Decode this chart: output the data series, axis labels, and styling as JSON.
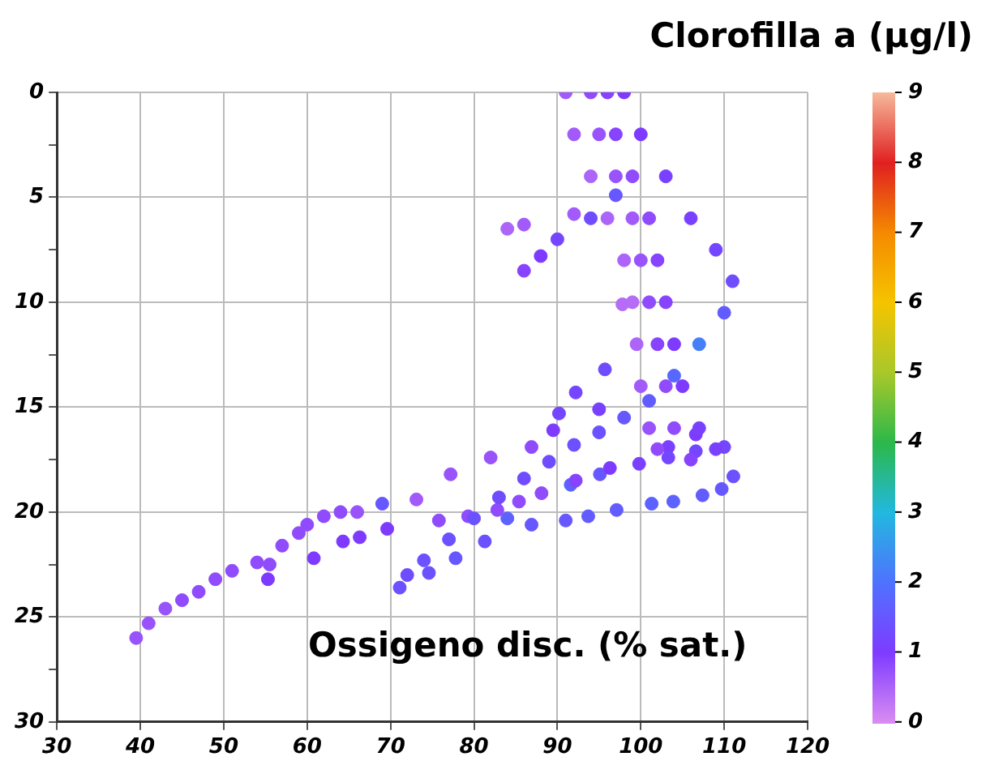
{
  "chart_data": {
    "type": "scatter",
    "xlabel": "Ossigeno disc. (% sat.)",
    "clabel": "Clorofilla a (µg/l)",
    "xlim": [
      30,
      120
    ],
    "xticks": [
      30,
      40,
      50,
      60,
      70,
      80,
      90,
      100,
      110,
      120
    ],
    "ylim": [
      30,
      0
    ],
    "yticks": [
      0,
      {
        "value": 2.5,
        "label": null
      },
      5,
      {
        "value": 7.5,
        "label": null
      },
      10,
      {
        "value": 12.5,
        "label": null
      },
      15,
      {
        "value": 17.5,
        "label": null
      },
      20,
      {
        "value": 22.5,
        "label": null
      },
      25,
      {
        "value": 27.5,
        "label": null
      },
      30
    ],
    "clim": [
      0,
      9
    ],
    "cticks": [
      0,
      1,
      2,
      3,
      4,
      5,
      6,
      7,
      8,
      9
    ],
    "grid": true,
    "marker": "circle",
    "series": [
      {
        "x": [
          91,
          92,
          94,
          96,
          98,
          99,
          99.5,
          100,
          101,
          102
        ],
        "values": [
          0,
          2,
          4,
          6,
          8,
          10,
          12,
          14,
          16,
          17
        ],
        "cvalues": [
          0.6,
          0.6,
          0.5,
          0.5,
          0.5,
          0.4,
          0.5,
          0.6,
          0.7,
          0.8
        ],
        "colors": [
          "#a25bfa",
          "#a25bfa",
          "#ac64f9",
          "#ac64f9",
          "#ac64f9",
          "#b56cf7",
          "#ac64f9",
          "#a25bfa",
          "#9953fb",
          "#904bfc"
        ]
      },
      {
        "x": [
          94,
          95,
          97,
          99,
          100,
          101,
          102,
          103,
          104,
          106
        ],
        "values": [
          0,
          2,
          4,
          6,
          8,
          10,
          12,
          14,
          16,
          17.5
        ],
        "cvalues": [
          0.8,
          0.7,
          0.7,
          0.6,
          0.7,
          0.8,
          0.9,
          0.8,
          0.8,
          0.9
        ],
        "colors": [
          "#904bfc",
          "#9953fb",
          "#9953fb",
          "#a25bfa",
          "#9953fb",
          "#904bfc",
          "#8743fe",
          "#904bfc",
          "#904bfc",
          "#8743fe"
        ]
      },
      {
        "x": [
          96,
          97,
          99,
          101,
          102,
          103,
          104,
          105,
          107,
          109
        ],
        "values": [
          0,
          2,
          4,
          6,
          8,
          10,
          12,
          14,
          16,
          17
        ],
        "cvalues": [
          0.9,
          0.9,
          0.8,
          0.8,
          0.9,
          0.9,
          1,
          1,
          1.1,
          1.1
        ],
        "colors": [
          "#8743fe",
          "#8743fe",
          "#904bfc",
          "#904bfc",
          "#8743fe",
          "#8743fe",
          "#7e3bff",
          "#7e3bff",
          "#7941ff",
          "#7941ff"
        ]
      },
      {
        "x": [
          98,
          100,
          103,
          106,
          109,
          111,
          110,
          107,
          104,
          101,
          98,
          95,
          92,
          89,
          86,
          83,
          80,
          77,
          74,
          72
        ],
        "values": [
          0,
          2,
          4,
          6,
          7.5,
          9,
          10.5,
          12,
          13.5,
          14.7,
          15.5,
          16.2,
          16.8,
          17.6,
          18.4,
          19.3,
          20.3,
          21.3,
          22.3,
          23
        ],
        "cvalues": [
          1,
          1,
          1.1,
          1.1,
          1.2,
          1.3,
          1.6,
          2.2,
          1.8,
          1.6,
          1.5,
          1.4,
          1.4,
          1.3,
          1.3,
          1.3,
          1.4,
          1.4,
          1.4,
          1.3
        ],
        "colors": [
          "#7e3bff",
          "#7e3bff",
          "#7941ff",
          "#7941ff",
          "#7546ff",
          "#704cff",
          "#625cff",
          "#4680f9",
          "#5867ff",
          "#625cff",
          "#6757ff",
          "#6b51ff",
          "#6b51ff",
          "#704cff",
          "#704cff",
          "#704cff",
          "#6b51ff",
          "#6b51ff",
          "#6b51ff",
          "#704cff"
        ]
      },
      {
        "x": [
          97,
          94,
          90,
          88,
          86
        ],
        "values": [
          4.9,
          6,
          7,
          7.8,
          8.5
        ],
        "cvalues": [
          1.5,
          1.3,
          1.2,
          1,
          0.9
        ],
        "colors": [
          "#6757ff",
          "#704cff",
          "#7546ff",
          "#7e3bff",
          "#8743fe"
        ]
      },
      {
        "x": [
          39.5,
          41,
          43,
          45,
          47,
          49,
          51,
          54,
          55.5,
          57,
          59,
          60,
          62,
          64,
          66,
          69,
          73.1,
          77.2,
          82,
          86.9,
          89.5,
          95
        ],
        "values": [
          26,
          25.3,
          24.6,
          24.2,
          23.8,
          23.2,
          22.8,
          22.4,
          22.5,
          21.6,
          21,
          20.6,
          20.2,
          20,
          20,
          19.6,
          19.4,
          18.2,
          17.4,
          16.9,
          16.1,
          15.1
        ],
        "cvalues": [
          0.7,
          0.7,
          0.7,
          0.8,
          0.8,
          0.8,
          0.8,
          0.8,
          0.8,
          0.8,
          0.8,
          0.8,
          0.8,
          0.8,
          0.7,
          1.5,
          0.6,
          0.7,
          0.7,
          0.8,
          1,
          1.1
        ],
        "colors": [
          "#9953fb",
          "#9953fb",
          "#9953fb",
          "#904bfc",
          "#904bfc",
          "#904bfc",
          "#904bfc",
          "#904bfc",
          "#904bfc",
          "#904bfc",
          "#904bfc",
          "#904bfc",
          "#904bfc",
          "#904bfc",
          "#9953fb",
          "#6757ff",
          "#a25bfa",
          "#9953fb",
          "#9953fb",
          "#904bfc",
          "#7e3bff",
          "#7941ff"
        ]
      },
      {
        "x": [
          55.3,
          60.8,
          64.3,
          66.3,
          69.6,
          75.8,
          79.3,
          82.8,
          85.4,
          88.1,
          92.2,
          96.3,
          99.8,
          103.3,
          106.6,
          110
        ],
        "values": [
          23.2,
          22.2,
          21.4,
          21.2,
          20.8,
          20.4,
          20.2,
          19.9,
          19.5,
          19.1,
          18.5,
          17.9,
          17.7,
          17.4,
          17.1,
          16.9
        ],
        "cvalues": [
          1,
          1,
          1,
          1,
          1,
          0.8,
          0.8,
          0.8,
          0.8,
          0.8,
          0.9,
          1,
          1.1,
          1.2,
          1.2,
          1.2
        ],
        "colors": [
          "#7e3bff",
          "#7e3bff",
          "#7e3bff",
          "#7e3bff",
          "#7e3bff",
          "#904bfc",
          "#904bfc",
          "#904bfc",
          "#904bfc",
          "#904bfc",
          "#8743fe",
          "#7e3bff",
          "#7941ff",
          "#7546ff",
          "#7546ff",
          "#7546ff"
        ]
      },
      {
        "x": [
          81.3,
          86.9,
          91,
          93.7,
          97.1,
          101.3,
          103.9,
          107.4,
          109.7,
          111.1
        ],
        "values": [
          21.4,
          20.6,
          20.4,
          20.2,
          19.9,
          19.6,
          19.5,
          19.2,
          18.9,
          18.3
        ],
        "cvalues": [
          1.4,
          1.5,
          1.5,
          1.6,
          1.6,
          1.7,
          1.7,
          1.6,
          1.5,
          1.4
        ],
        "colors": [
          "#6b51ff",
          "#6757ff",
          "#6757ff",
          "#625cff",
          "#625cff",
          "#5d62ff",
          "#5d62ff",
          "#625cff",
          "#6757ff",
          "#6b51ff"
        ]
      },
      {
        "x": [
          71.1,
          74.6,
          77.8,
          84,
          91.6,
          95.1,
          103.3,
          106.6
        ],
        "values": [
          23.6,
          22.9,
          22.2,
          20.3,
          18.7,
          18.2,
          16.9,
          16.3
        ],
        "cvalues": [
          1.4,
          1.4,
          1.5,
          1.7,
          1.7,
          1.5,
          1.1,
          1
        ],
        "colors": [
          "#6b51ff",
          "#6b51ff",
          "#6757ff",
          "#5d62ff",
          "#5d62ff",
          "#6757ff",
          "#7941ff",
          "#7e3bff"
        ]
      },
      {
        "x": [
          90.2,
          92.2,
          95.7,
          97.8,
          84,
          86,
          92
        ],
        "values": [
          15.3,
          14.3,
          13.2,
          10.1,
          6.5,
          6.3,
          5.8
        ],
        "cvalues": [
          1.2,
          1.2,
          1.3,
          0.4,
          0.5,
          0.6,
          0.6
        ],
        "colors": [
          "#7546ff",
          "#7546ff",
          "#704cff",
          "#b56cf7",
          "#ac64f9",
          "#a25bfa",
          "#a25bfa"
        ]
      }
    ]
  }
}
